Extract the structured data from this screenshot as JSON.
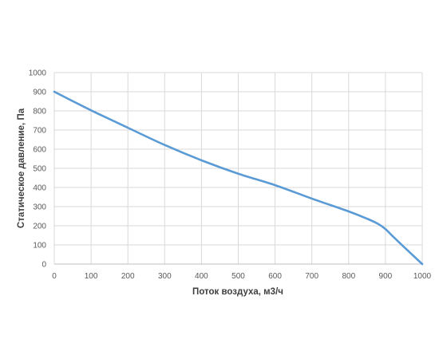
{
  "chart_data": {
    "type": "line",
    "xlabel": "Поток воздуха, м3/ч",
    "ylabel": "Статическое давление, Па",
    "xlim": [
      0,
      1000
    ],
    "ylim": [
      0,
      1000
    ],
    "x_ticks": [
      0,
      100,
      200,
      300,
      400,
      500,
      600,
      700,
      800,
      900,
      1000
    ],
    "y_ticks": [
      0,
      100,
      200,
      300,
      400,
      500,
      600,
      700,
      800,
      900,
      1000
    ],
    "grid": true,
    "line_color": "#5b9bd5",
    "series": [
      {
        "x": [
          0,
          100,
          200,
          300,
          400,
          500,
          600,
          700,
          800,
          850,
          880,
          900,
          920,
          950,
          1000
        ],
        "y": [
          900,
          803,
          712,
          622,
          542,
          472,
          412,
          342,
          275,
          237,
          210,
          183,
          145,
          90,
          0
        ]
      }
    ]
  }
}
